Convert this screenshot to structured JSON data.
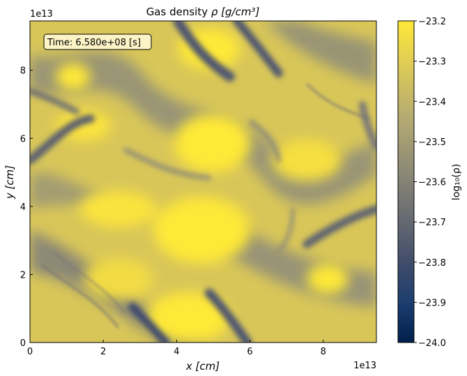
{
  "chart_data": {
    "type": "heatmap",
    "title_text": "Gas density ",
    "title_math": "ρ [g/cm³]",
    "xlabel": "x [cm]",
    "ylabel": "y [cm]",
    "x_offset_label": "1e13",
    "y_offset_label": "1e13",
    "x_ticks": [
      "0",
      "2",
      "4",
      "6",
      "8"
    ],
    "y_ticks": [
      "0",
      "2",
      "4",
      "6",
      "8"
    ],
    "x_tick_values": [
      0,
      2,
      4,
      6,
      8
    ],
    "y_tick_values": [
      0,
      2,
      4,
      6,
      8
    ],
    "xlim": [
      0,
      9.45
    ],
    "ylim": [
      0,
      9.45
    ],
    "annotation": "Time: 6.580e+08 [s]",
    "colorbar": {
      "label": "log₁₀(ρ)",
      "colormap": "cividis",
      "range": [
        -24.0,
        -23.2
      ],
      "ticks": [
        "−23.2",
        "−23.3",
        "−23.4",
        "−23.5",
        "−23.6",
        "−23.7",
        "−23.8",
        "−23.9",
        "−24.0"
      ],
      "tick_values": [
        -23.2,
        -23.3,
        -23.4,
        -23.5,
        -23.6,
        -23.7,
        -23.8,
        -23.9,
        -24.0
      ]
    },
    "colors": {
      "high": "#fee838",
      "mid": "#a8a27c",
      "low": "#00204d",
      "dark_filament": "#4a5170"
    }
  }
}
